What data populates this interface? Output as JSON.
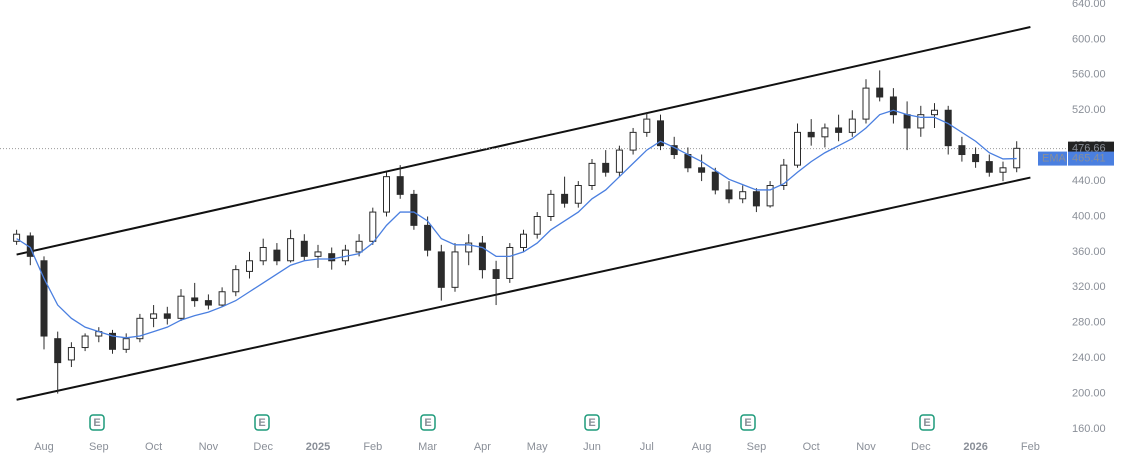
{
  "chart_data": {
    "type": "candlestick",
    "categories": [
      null,
      null,
      "Aug",
      null,
      null,
      null,
      "Sep",
      null,
      null,
      null,
      "Oct",
      null,
      null,
      null,
      "Nov",
      null,
      null,
      null,
      "Dec",
      null,
      null,
      null,
      "2025",
      null,
      null,
      null,
      "Feb",
      null,
      null,
      null,
      "Mar",
      null,
      null,
      null,
      "Apr",
      null,
      null,
      null,
      "May",
      null,
      null,
      null,
      "Jun",
      null,
      null,
      null,
      "Jul",
      null,
      null,
      null,
      "Aug",
      null,
      null,
      null,
      "Sep",
      null,
      null,
      null,
      "Oct",
      null,
      null,
      null,
      "Nov",
      null,
      null,
      null,
      "Dec",
      null,
      null,
      null,
      "2026",
      null,
      null,
      null,
      "Feb"
    ],
    "open": [
      372,
      378,
      350,
      262,
      238,
      252,
      265,
      268,
      250,
      262,
      285,
      290,
      285,
      308,
      305,
      300,
      315,
      338,
      350,
      362,
      350,
      372,
      355,
      358,
      350,
      360,
      372,
      405,
      445,
      425,
      390,
      360,
      320,
      360,
      370,
      340,
      330,
      365,
      380,
      400,
      425,
      415,
      435,
      460,
      450,
      475,
      495,
      508,
      480,
      470,
      455,
      450,
      430,
      420,
      428,
      412,
      435,
      458,
      495,
      490,
      500,
      495,
      510,
      545,
      535,
      515,
      500,
      515,
      520,
      480,
      470,
      462,
      450,
      455,
      null
    ],
    "high": [
      385,
      382,
      355,
      270,
      258,
      268,
      275,
      272,
      268,
      290,
      300,
      298,
      318,
      325,
      312,
      320,
      345,
      360,
      375,
      370,
      385,
      380,
      368,
      365,
      368,
      380,
      410,
      450,
      458,
      430,
      400,
      368,
      370,
      380,
      378,
      350,
      370,
      385,
      405,
      430,
      445,
      440,
      465,
      475,
      480,
      500,
      518,
      515,
      490,
      478,
      470,
      455,
      440,
      435,
      432,
      440,
      465,
      505,
      510,
      505,
      515,
      520,
      555,
      565,
      545,
      530,
      525,
      528,
      525,
      490,
      478,
      470,
      462,
      485,
      null
    ],
    "low": [
      368,
      345,
      250,
      200,
      230,
      248,
      258,
      245,
      246,
      258,
      275,
      278,
      282,
      298,
      295,
      298,
      310,
      330,
      345,
      345,
      348,
      350,
      342,
      340,
      345,
      355,
      368,
      400,
      420,
      385,
      355,
      305,
      315,
      345,
      330,
      300,
      325,
      360,
      375,
      395,
      410,
      410,
      430,
      445,
      445,
      470,
      490,
      475,
      465,
      450,
      440,
      425,
      415,
      415,
      405,
      410,
      430,
      455,
      480,
      478,
      485,
      490,
      505,
      530,
      505,
      475,
      490,
      500,
      470,
      462,
      455,
      445,
      440,
      450,
      null
    ],
    "close": [
      380,
      355,
      265,
      235,
      252,
      265,
      270,
      250,
      262,
      285,
      290,
      285,
      310,
      305,
      300,
      315,
      340,
      350,
      365,
      350,
      375,
      355,
      360,
      350,
      362,
      372,
      405,
      445,
      425,
      390,
      362,
      320,
      360,
      370,
      340,
      330,
      365,
      380,
      400,
      425,
      415,
      435,
      460,
      450,
      475,
      495,
      510,
      480,
      470,
      455,
      450,
      430,
      420,
      428,
      412,
      435,
      458,
      495,
      490,
      500,
      495,
      510,
      545,
      535,
      515,
      500,
      515,
      520,
      480,
      470,
      462,
      450,
      455,
      477,
      null
    ],
    "color": "#2b2b2b",
    "ema": {
      "name": "EMA",
      "color": "#4a7fe0",
      "values": [
        375,
        365,
        330,
        300,
        285,
        275,
        270,
        265,
        263,
        265,
        270,
        275,
        283,
        288,
        292,
        298,
        305,
        315,
        325,
        335,
        345,
        350,
        352,
        352,
        355,
        358,
        370,
        390,
        405,
        405,
        395,
        375,
        368,
        368,
        365,
        355,
        355,
        360,
        370,
        385,
        395,
        405,
        420,
        430,
        445,
        460,
        475,
        485,
        478,
        470,
        462,
        452,
        442,
        436,
        430,
        430,
        437,
        450,
        462,
        472,
        480,
        488,
        500,
        515,
        520,
        515,
        512,
        512,
        505,
        495,
        485,
        472,
        465,
        465.41,
        null
      ],
      "last": 465.41
    },
    "last_price": 476.66,
    "channel": {
      "upper": [
        357,
        614
      ],
      "lower": [
        193,
        444
      ]
    },
    "earnings_label": "E",
    "ylim": [
      160,
      640
    ],
    "yticks": [
      {
        "value": 160,
        "label": "160.00"
      },
      {
        "value": 200,
        "label": "200.00"
      },
      {
        "value": 240,
        "label": "240.00"
      },
      {
        "value": 280,
        "label": "280.00"
      },
      {
        "value": 320,
        "label": "320.00"
      },
      {
        "value": 360,
        "label": "360.00"
      },
      {
        "value": 400,
        "label": "400.00"
      },
      {
        "value": 440,
        "label": "440.00"
      },
      {
        "value": 480,
        "label": "480.00"
      },
      {
        "value": 520,
        "label": "520.00"
      },
      {
        "value": 560,
        "label": "560.00"
      },
      {
        "value": 600,
        "label": "600.00"
      },
      {
        "value": 640,
        "label": "640.00"
      }
    ]
  }
}
